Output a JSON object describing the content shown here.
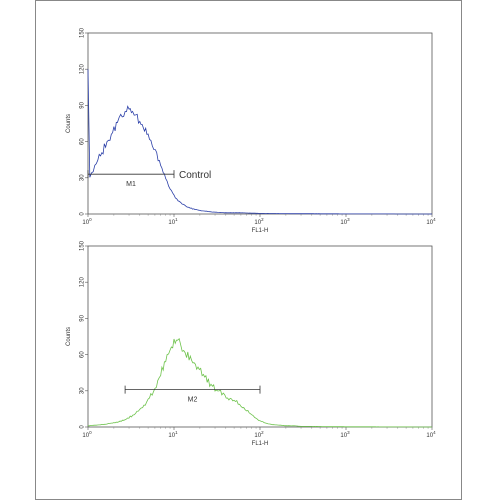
{
  "chart_data": [
    {
      "type": "line",
      "xlabel": "FL1-H",
      "ylabel": "Counts",
      "xscale": "log",
      "xlim": [
        1,
        10000
      ],
      "ylim": [
        0,
        150
      ],
      "x_ticks": [
        {
          "base": "10",
          "exp": "0"
        },
        {
          "base": "10",
          "exp": "1"
        },
        {
          "base": "10",
          "exp": "2"
        },
        {
          "base": "10",
          "exp": "3"
        },
        {
          "base": "10",
          "exp": "4"
        }
      ],
      "y_ticks": [
        "0",
        "30",
        "60",
        "90",
        "120",
        "150"
      ],
      "color": "#2b3fa8",
      "series": [
        {
          "name": "Control",
          "x": [
            1,
            1.05,
            1.1,
            1.2,
            1.3,
            1.45,
            1.6,
            1.8,
            2.0,
            2.2,
            2.4,
            2.6,
            2.8,
            3.0,
            3.3,
            3.6,
            4.0,
            4.4,
            5.0,
            5.6,
            6.3,
            7.0,
            8.0,
            9.0,
            10,
            12,
            14,
            17,
            20,
            25,
            30,
            40,
            60,
            100,
            200,
            500,
            1000,
            10000
          ],
          "y": [
            120,
            30,
            32,
            38,
            45,
            50,
            58,
            64,
            70,
            76,
            80,
            84,
            86,
            88,
            84,
            82,
            76,
            72,
            66,
            58,
            50,
            40,
            30,
            22,
            15,
            9,
            6,
            4,
            3,
            2,
            1.5,
            1,
            1,
            0.5,
            0.3,
            0.2,
            0.1,
            0
          ]
        }
      ],
      "gate": {
        "label": "M1",
        "x_start": 1,
        "x_end": 10,
        "y": 33
      }
    },
    {
      "type": "line",
      "xlabel": "FL1-H",
      "ylabel": "Counts",
      "xscale": "log",
      "xlim": [
        1,
        10000
      ],
      "ylim": [
        0,
        150
      ],
      "x_ticks": [
        {
          "base": "10",
          "exp": "0"
        },
        {
          "base": "10",
          "exp": "1"
        },
        {
          "base": "10",
          "exp": "2"
        },
        {
          "base": "10",
          "exp": "3"
        },
        {
          "base": "10",
          "exp": "4"
        }
      ],
      "y_ticks": [
        "0",
        "30",
        "60",
        "90",
        "120",
        "150"
      ],
      "color": "#6cc24a",
      "series": [
        {
          "x": [
            1,
            1.2,
            1.5,
            1.8,
            2.2,
            2.7,
            3.2,
            4.0,
            5.0,
            6.0,
            7.0,
            8.0,
            9.0,
            10,
            11,
            12,
            14,
            16,
            19,
            22,
            26,
            30,
            36,
            42,
            50,
            60,
            70,
            80,
            90,
            100,
            120,
            140,
            170,
            200,
            250,
            300,
            400,
            600,
            1000,
            3000,
            10000
          ],
          "y": [
            1,
            1.5,
            2,
            3,
            4,
            6,
            9,
            14,
            22,
            32,
            44,
            55,
            64,
            70,
            72,
            68,
            60,
            56,
            48,
            44,
            36,
            32,
            28,
            24,
            22,
            18,
            14,
            10,
            7,
            5,
            3,
            2,
            1.5,
            1,
            1,
            0.5,
            0.5,
            0.3,
            0.2,
            0.1,
            0
          ]
        }
      ],
      "gate": {
        "label": "M2",
        "x_start": 2.7,
        "x_end": 100,
        "y": 31
      }
    }
  ]
}
